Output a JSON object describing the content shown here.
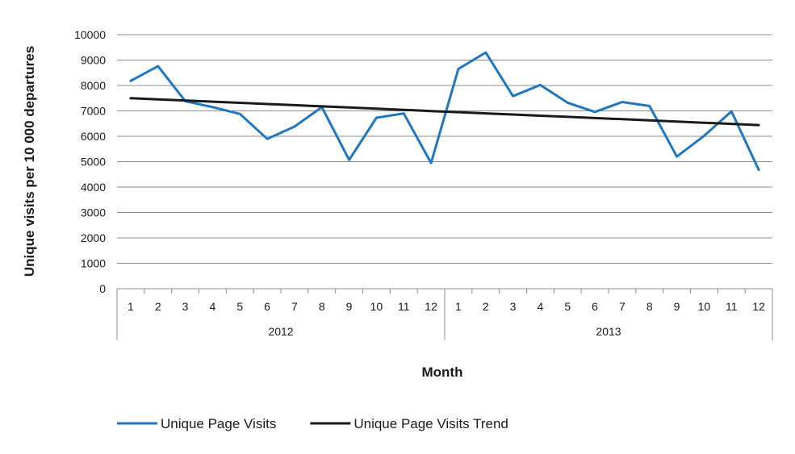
{
  "chart_data": {
    "type": "line",
    "title": "",
    "xlabel": "Month",
    "ylabel": "Unique visits per 10 000 departures",
    "ylim": [
      0,
      10000
    ],
    "yticks": [
      0,
      1000,
      2000,
      3000,
      4000,
      5000,
      6000,
      7000,
      8000,
      9000,
      10000
    ],
    "grid": "horizontal",
    "legend_position": "bottom",
    "categories": [
      "1",
      "2",
      "3",
      "4",
      "5",
      "6",
      "7",
      "8",
      "9",
      "10",
      "11",
      "12",
      "1",
      "2",
      "3",
      "4",
      "5",
      "6",
      "7",
      "8",
      "9",
      "10",
      "11",
      "12"
    ],
    "groups": [
      {
        "label": "2012",
        "count": 12
      },
      {
        "label": "2013",
        "count": 12
      }
    ],
    "series": [
      {
        "name": "Unique Page Visits",
        "color": "#1f77c4",
        "values": [
          8180,
          8760,
          7380,
          7150,
          6880,
          5900,
          6380,
          7150,
          5070,
          6730,
          6900,
          4950,
          8650,
          9300,
          7580,
          8020,
          7320,
          6960,
          7350,
          7190,
          5200,
          6020,
          6980,
          4680
        ]
      },
      {
        "name": "Unique Page Visits Trend",
        "color": "#1a1a1a",
        "values": [
          7500,
          7454,
          7408,
          7362,
          7316,
          7270,
          7224,
          7178,
          7132,
          7086,
          7040,
          6994,
          6948,
          6902,
          6856,
          6810,
          6764,
          6718,
          6672,
          6626,
          6580,
          6534,
          6488,
          6442
        ]
      }
    ]
  }
}
